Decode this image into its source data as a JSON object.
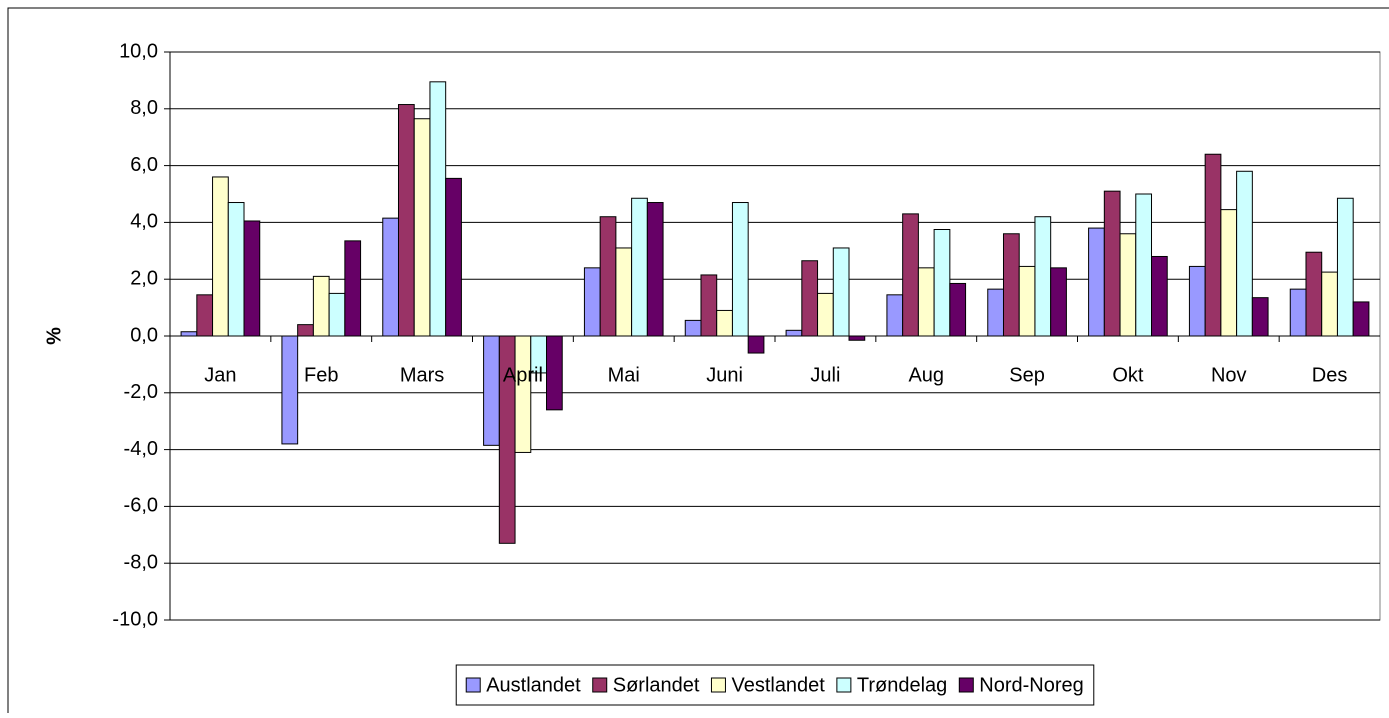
{
  "chart_data": {
    "type": "bar",
    "ylabel": "%",
    "categories": [
      "Jan",
      "Feb",
      "Mars",
      "April",
      "Mai",
      "Juni",
      "Juli",
      "Aug",
      "Sep",
      "Okt",
      "Nov",
      "Des"
    ],
    "series": [
      {
        "name": "Austlandet",
        "color": "#9999ff",
        "values": [
          0.15,
          -3.8,
          4.15,
          -3.85,
          2.4,
          0.55,
          0.2,
          1.45,
          1.65,
          3.8,
          2.45,
          1.65
        ]
      },
      {
        "name": "Sørlandet",
        "color": "#993366",
        "values": [
          1.45,
          0.4,
          8.15,
          -7.3,
          4.2,
          2.15,
          2.65,
          4.3,
          3.6,
          5.1,
          6.4,
          2.95
        ]
      },
      {
        "name": "Vestlandet",
        "color": "#ffffcc",
        "values": [
          5.6,
          2.1,
          7.65,
          -4.1,
          3.1,
          0.9,
          1.5,
          2.4,
          2.45,
          3.6,
          4.45,
          2.25
        ]
      },
      {
        "name": "Trøndelag",
        "color": "#ccffff",
        "values": [
          4.7,
          1.5,
          8.95,
          -1.3,
          4.85,
          4.7,
          3.1,
          3.75,
          4.2,
          5.0,
          5.8,
          4.85
        ]
      },
      {
        "name": "Nord-Noreg",
        "color": "#660066",
        "values": [
          4.05,
          3.35,
          5.55,
          -2.6,
          4.7,
          -0.6,
          -0.15,
          1.85,
          2.4,
          2.8,
          1.35,
          1.2
        ]
      }
    ],
    "ylim": [
      -10,
      10
    ],
    "yticks": [
      {
        "value": -10,
        "label": "-10,0"
      },
      {
        "value": -8,
        "label": "-8,0"
      },
      {
        "value": -6,
        "label": "-6,0"
      },
      {
        "value": -4,
        "label": "-4,0"
      },
      {
        "value": -2,
        "label": "-2,0"
      },
      {
        "value": 0,
        "label": "0,0"
      },
      {
        "value": 2,
        "label": "2,0"
      },
      {
        "value": 4,
        "label": "4,0"
      },
      {
        "value": 6,
        "label": "6,0"
      },
      {
        "value": 8,
        "label": "8,0"
      },
      {
        "value": 10,
        "label": "10,0"
      }
    ],
    "grid": true,
    "legend": "bottom"
  }
}
